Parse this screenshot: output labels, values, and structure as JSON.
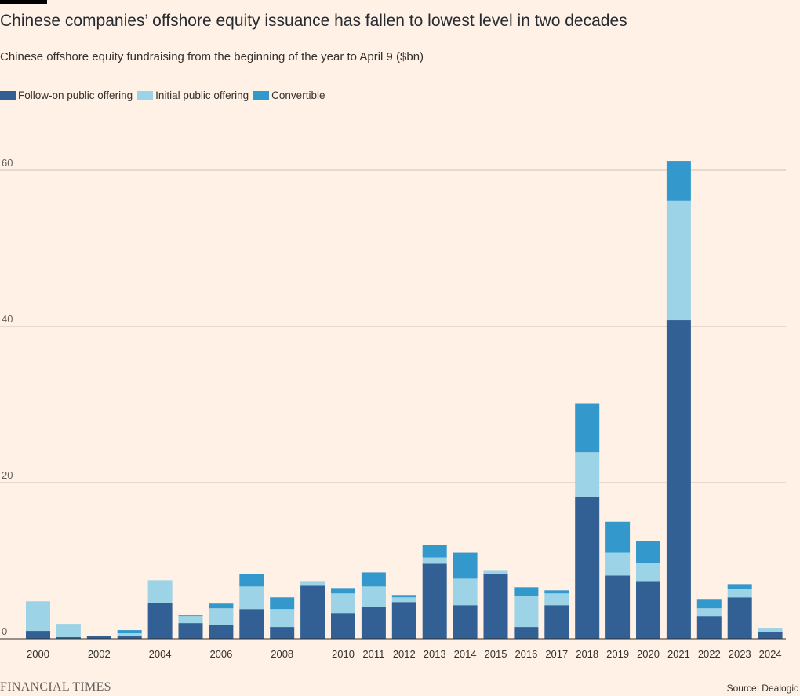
{
  "header": {
    "title": "Chinese companies’ offshore equity issuance has fallen to lowest level in two decades",
    "subtitle": "Chinese offshore equity fundraising from the beginning of the year to April 9 ($bn)"
  },
  "legend": [
    {
      "label": "Follow-on public offering",
      "color": "#325f94"
    },
    {
      "label": "Initial public offering",
      "color": "#9dd3e6"
    },
    {
      "label": "Convertible",
      "color": "#3399cc"
    }
  ],
  "chart_data": {
    "type": "bar",
    "stacked": true,
    "categories": [
      "2000",
      "2001",
      "2002",
      "2003",
      "2004",
      "2005",
      "2006",
      "2007",
      "2008",
      "2009",
      "2010",
      "2011",
      "2012",
      "2013",
      "2014",
      "2015",
      "2016",
      "2017",
      "2018",
      "2019",
      "2020",
      "2021",
      "2022",
      "2023",
      "2024"
    ],
    "x_tick_labels": [
      "2000",
      "",
      "2002",
      "",
      "2004",
      "",
      "2006",
      "",
      "2008",
      "",
      "2010",
      "2011",
      "2012",
      "2013",
      "2014",
      "2015",
      "2016",
      "2017",
      "2018",
      "2019",
      "2020",
      "2021",
      "2022",
      "2023",
      "2024"
    ],
    "series": [
      {
        "name": "Follow-on public offering",
        "color": "#325f94",
        "values": [
          1.0,
          0.2,
          0.4,
          0.3,
          4.6,
          2.0,
          1.8,
          3.8,
          1.5,
          6.8,
          3.3,
          4.1,
          4.7,
          9.6,
          4.3,
          8.3,
          1.5,
          4.3,
          18.1,
          8.1,
          7.3,
          40.8,
          2.9,
          5.3,
          0.9
        ]
      },
      {
        "name": "Initial public offering",
        "color": "#9dd3e6",
        "values": [
          3.8,
          1.7,
          0.0,
          0.4,
          2.9,
          0.9,
          2.1,
          2.9,
          2.3,
          0.5,
          2.5,
          2.6,
          0.6,
          0.8,
          3.4,
          0.4,
          4.0,
          1.5,
          5.8,
          2.9,
          2.4,
          15.3,
          1.0,
          1.1,
          0.5
        ]
      },
      {
        "name": "Convertible",
        "color": "#3399cc",
        "values": [
          0.0,
          0.0,
          0.0,
          0.4,
          0.0,
          0.1,
          0.6,
          1.6,
          1.5,
          0.0,
          0.7,
          1.8,
          0.3,
          1.6,
          3.3,
          0.0,
          1.1,
          0.4,
          6.2,
          4.0,
          2.8,
          5.1,
          1.1,
          0.6,
          0.0
        ]
      }
    ],
    "ylim": [
      0,
      65
    ],
    "yticks": [
      0,
      20,
      40,
      60
    ],
    "ytick_labels": [
      "0",
      "20",
      "40",
      "60"
    ],
    "grid": true,
    "legend_placement": "top-left"
  },
  "footer": {
    "brand": "FINANCIAL TIMES",
    "source": "Source: Dealogic"
  }
}
